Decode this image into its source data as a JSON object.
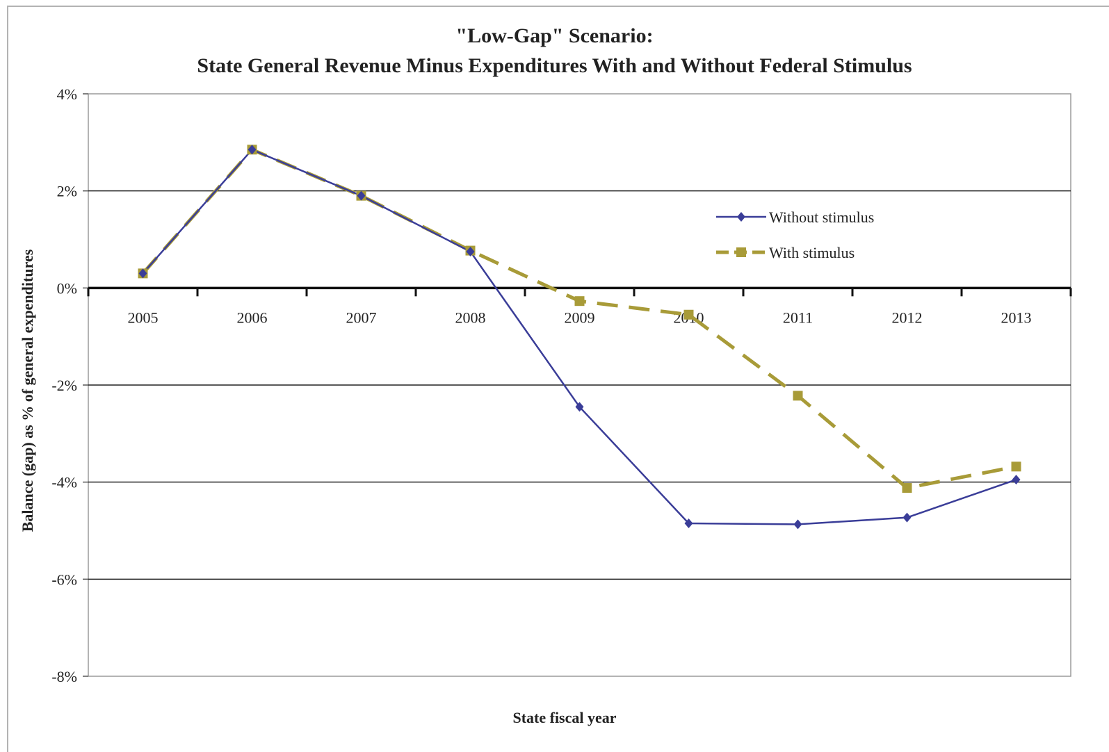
{
  "chart_data": {
    "type": "line",
    "title": "\"Low-Gap\" Scenario:",
    "subtitle": "State General Revenue Minus Expenditures With and Without Federal Stimulus",
    "xlabel": "State fiscal year",
    "ylabel": "Balance (gap) as % of general expenditures",
    "categories": [
      "2005",
      "2006",
      "2007",
      "2008",
      "2009",
      "2010",
      "2011",
      "2012",
      "2013"
    ],
    "ylim": [
      -8,
      4
    ],
    "yticks": [
      4,
      2,
      0,
      -2,
      -4,
      -6,
      -8
    ],
    "ytick_labels": [
      "4%",
      "2%",
      "0%",
      "-2%",
      "-4%",
      "-6%",
      "-8%"
    ],
    "grid": true,
    "legend_position": "upper-right",
    "series": [
      {
        "name": "Without stimulus",
        "color": "#3a3d98",
        "marker": "diamond",
        "line_style": "solid",
        "values": [
          0.3,
          2.85,
          1.9,
          0.75,
          -2.45,
          -4.85,
          -4.87,
          -4.73,
          -3.95
        ]
      },
      {
        "name": "With stimulus",
        "color": "#a89b38",
        "marker": "square",
        "line_style": "dashed",
        "values": [
          0.3,
          2.85,
          1.9,
          0.77,
          -0.27,
          -0.55,
          -2.22,
          -4.12,
          -3.68
        ]
      }
    ]
  }
}
